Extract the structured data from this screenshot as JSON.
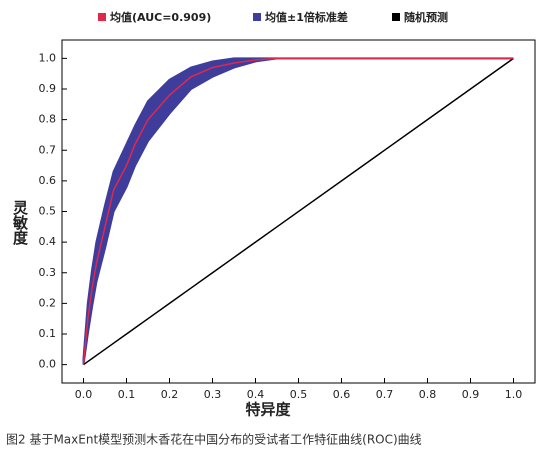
{
  "chart_data": {
    "type": "roc",
    "caption": "图2 基于MaxEnt模型预测木香花在中国分布的受试者工作特征曲线(ROC)曲线",
    "x_label": "特异度",
    "y_label": "灵敏度",
    "x": [
      0,
      0.01,
      0.02,
      0.03,
      0.05,
      0.07,
      0.1,
      0.12,
      0.15,
      0.2,
      0.25,
      0.3,
      0.35,
      0.4,
      0.45,
      1.0
    ],
    "series": [
      {
        "name": "均值(AUC=0.909)",
        "color": "#e0284b",
        "values": [
          0,
          0.15,
          0.25,
          0.33,
          0.45,
          0.57,
          0.65,
          0.72,
          0.8,
          0.88,
          0.94,
          0.97,
          0.985,
          0.995,
          1.0,
          1.0
        ]
      },
      {
        "name": "均值±1倍标准差",
        "color": "#3f3d9c",
        "upper": [
          0.02,
          0.2,
          0.31,
          0.4,
          0.52,
          0.63,
          0.72,
          0.78,
          0.86,
          0.93,
          0.97,
          0.99,
          1.0,
          1.0,
          1.0,
          1.0
        ],
        "lower": [
          0,
          0.1,
          0.19,
          0.27,
          0.38,
          0.5,
          0.58,
          0.65,
          0.73,
          0.82,
          0.9,
          0.94,
          0.97,
          0.99,
          1.0,
          1.0
        ]
      },
      {
        "name": "随机预测",
        "color": "#000000",
        "values": [
          0,
          0.01,
          0.02,
          0.03,
          0.05,
          0.07,
          0.1,
          0.12,
          0.15,
          0.2,
          0.25,
          0.3,
          0.35,
          0.4,
          0.45,
          1.0
        ]
      }
    ],
    "xlim": [
      -0.05,
      1.05
    ],
    "ylim": [
      -0.06,
      1.06
    ],
    "xticks": [
      {
        "value": 0,
        "label": "0.0"
      },
      {
        "value": 0.1,
        "label": "0.1"
      },
      {
        "value": 0.2,
        "label": "0.2"
      },
      {
        "value": 0.3,
        "label": "0.3"
      },
      {
        "value": 0.4,
        "label": "0.4"
      },
      {
        "value": 0.5,
        "label": "0.5"
      },
      {
        "value": 0.6,
        "label": "0.6"
      },
      {
        "value": 0.7,
        "label": "0.7"
      },
      {
        "value": 0.8,
        "label": "0.8"
      },
      {
        "value": 0.9,
        "label": "0.9"
      },
      {
        "value": 1,
        "label": "1.0"
      }
    ],
    "yticks": [
      {
        "value": 0,
        "label": "0.0"
      },
      {
        "value": 0.1,
        "label": "0.1"
      },
      {
        "value": 0.2,
        "label": "0.2"
      },
      {
        "value": 0.3,
        "label": "0.3"
      },
      {
        "value": 0.4,
        "label": "0.4"
      },
      {
        "value": 0.5,
        "label": "0.5"
      },
      {
        "value": 0.6,
        "label": "0.6"
      },
      {
        "value": 0.7,
        "label": "0.7"
      },
      {
        "value": 0.8,
        "label": "0.8"
      },
      {
        "value": 0.9,
        "label": "0.9"
      },
      {
        "value": 1,
        "label": "1.0"
      }
    ]
  }
}
